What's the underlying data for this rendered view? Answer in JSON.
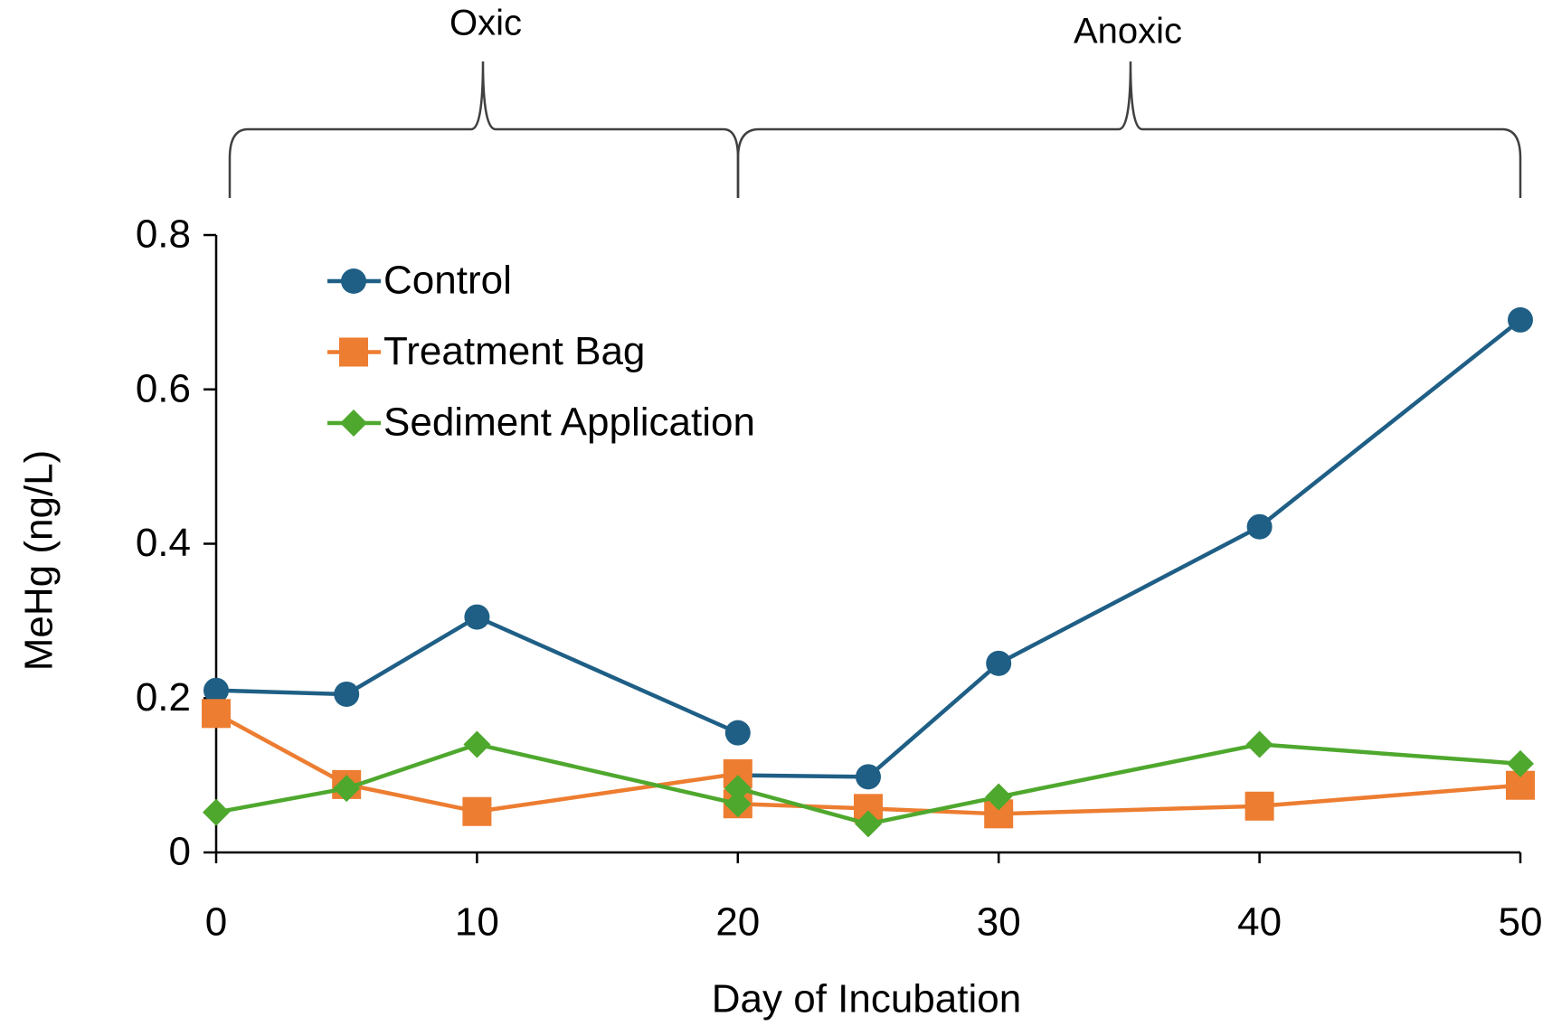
{
  "chart_data": {
    "type": "line",
    "annotations": [
      "Oxic",
      "Anoxic"
    ],
    "xlabel": "Day of Incubation",
    "ylabel": "MeHg (ng/L)",
    "x": [
      0,
      5,
      10,
      20,
      20,
      20,
      25,
      30,
      40,
      50
    ],
    "series": [
      {
        "name": "Control",
        "color": "#1f5f86",
        "marker": "circle",
        "values": [
          0.21,
          0.205,
          0.305,
          0.155,
          null,
          0.1,
          0.098,
          0.245,
          0.422,
          0.69
        ]
      },
      {
        "name": "Treatment Bag",
        "color": "#ed7d31",
        "marker": "square",
        "values": [
          0.18,
          0.088,
          0.053,
          0.102,
          null,
          0.063,
          0.057,
          0.05,
          0.06,
          0.087
        ]
      },
      {
        "name": "Sediment Application",
        "color": "#4fa82e",
        "marker": "diamond",
        "values": [
          0.052,
          0.083,
          0.14,
          0.063,
          null,
          0.083,
          0.037,
          0.072,
          0.14,
          0.115
        ]
      }
    ],
    "xlim": [
      0,
      50
    ],
    "xticks": [
      0,
      10,
      20,
      30,
      40,
      50
    ],
    "ylim": [
      0,
      0.8
    ],
    "yticks": [
      0,
      0.2,
      0.4,
      0.6,
      0.8
    ],
    "legend": "upper left",
    "grid": false
  }
}
